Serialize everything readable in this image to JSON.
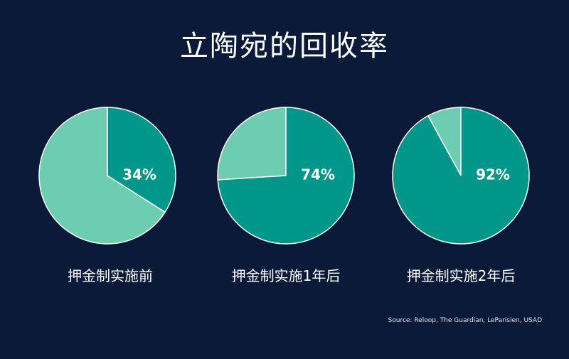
{
  "title": "立陶宛的回收率",
  "source": "Source: Reloop, The Guardian, LeParisien, USAD",
  "colors": {
    "background": "#0b1a38",
    "recycled": "#00968a",
    "remainder": "#6ccdb1",
    "pie_edge": "#ffffff"
  },
  "chart_data": {
    "type": "pie",
    "title": "立陶宛的回收率",
    "value_unit": "%",
    "charts": [
      {
        "label": "押金制实施前",
        "value": 34,
        "value_label": "34%"
      },
      {
        "label": "押金制实施1年后",
        "value": 74,
        "value_label": "74%"
      },
      {
        "label": "押金制实施2年后",
        "value": 92,
        "value_label": "92%"
      }
    ]
  }
}
